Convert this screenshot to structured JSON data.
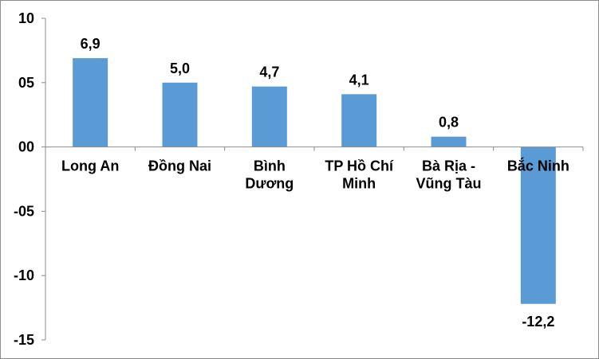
{
  "chart_data": {
    "type": "bar",
    "title": "",
    "xlabel": "",
    "ylabel": "",
    "categories": [
      [
        "Long An"
      ],
      [
        "Đồng Nai"
      ],
      [
        "Bình",
        "Dương"
      ],
      [
        "TP Hồ Chí",
        "Minh"
      ],
      [
        "Bà Rịa -",
        "Vũng Tàu"
      ],
      [
        "Bắc Ninh"
      ]
    ],
    "values": [
      6.9,
      5.0,
      4.7,
      4.1,
      0.8,
      -12.2
    ],
    "data_labels": [
      "6,9",
      "5,0",
      "4,7",
      "4,1",
      "0,8",
      "-12,2"
    ],
    "ylim": [
      -15,
      10
    ],
    "yticks": [
      10,
      5,
      0,
      -5,
      -10,
      -15
    ],
    "ytick_labels": [
      "10",
      "05",
      "00",
      "-05",
      "-10",
      "-15"
    ],
    "grid": false,
    "bar_color": "#5b9bd5"
  }
}
